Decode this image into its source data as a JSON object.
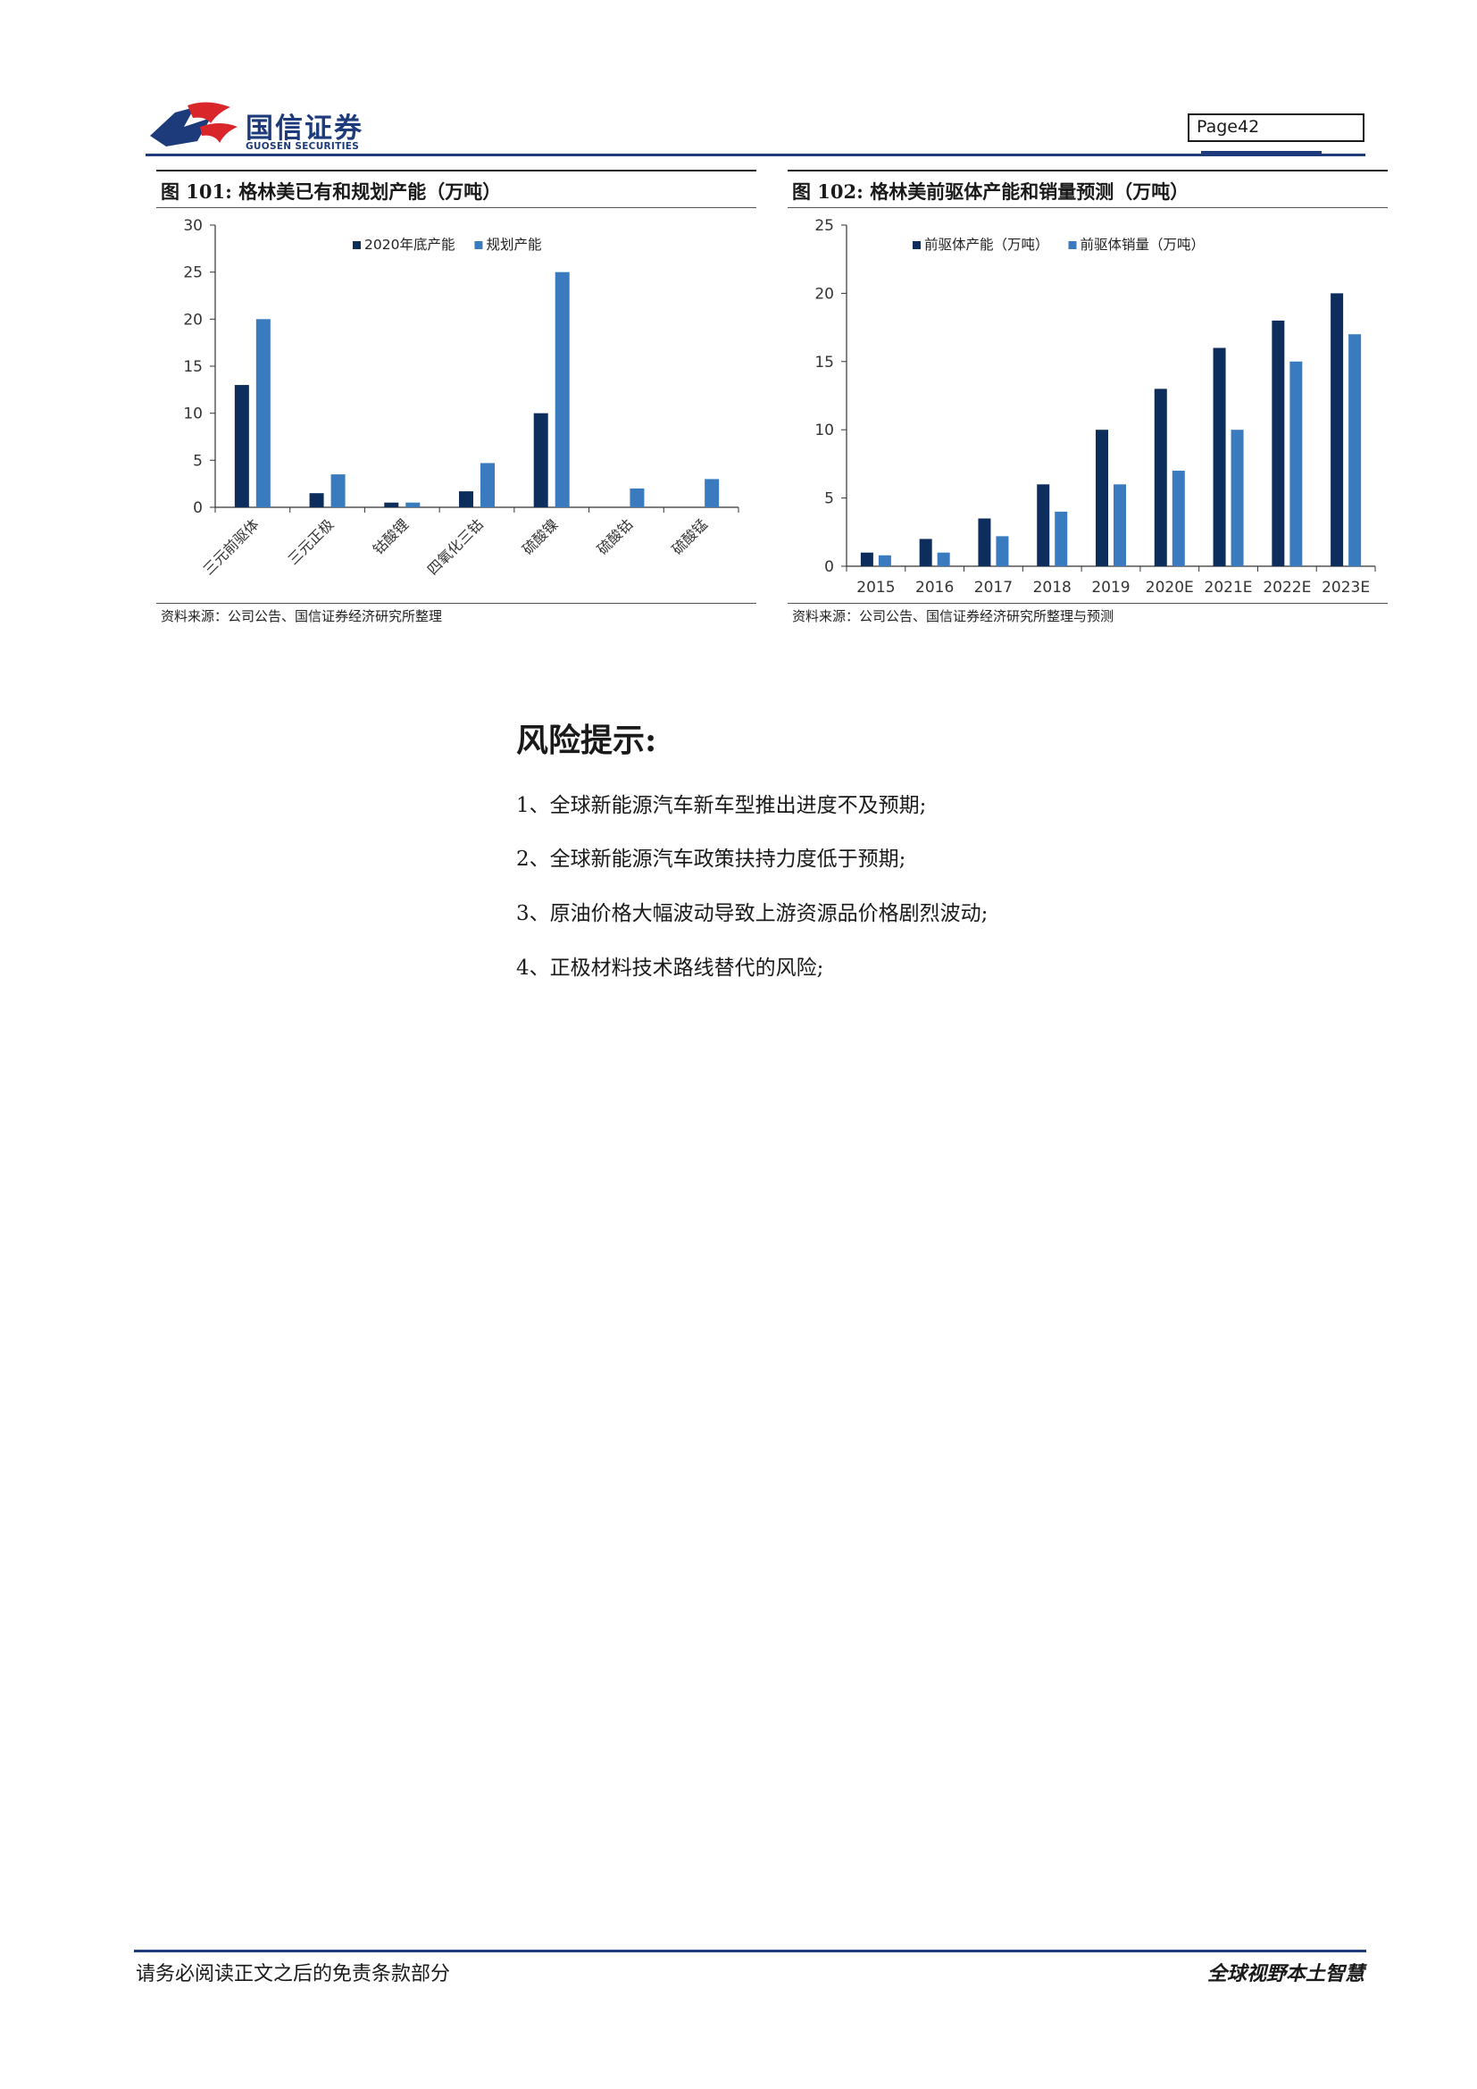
{
  "header": {
    "logo_cn": "国信证券",
    "logo_en": "GUOSEN SECURITIES",
    "page_label": "Page42"
  },
  "colors": {
    "dark_navy": "#0d2e5c",
    "mid_blue": "#3a7bbf",
    "brand_blue": "#1d3a7a",
    "logo_red": "#d9262b"
  },
  "figures": [
    {
      "title": "图 101:  格林美已有和规划产能（万吨）",
      "source": "资料来源：公司公告、国信证券经济研究所整理",
      "chart_data": {
        "type": "bar",
        "categories": [
          "三元前驱体",
          "三元正极",
          "钴酸锂",
          "四氧化三钴",
          "硫酸镍",
          "硫酸钴",
          "硫酸锰"
        ],
        "series": [
          {
            "name": "2020年底产能",
            "values": [
              13,
              1.5,
              0.5,
              1.7,
              10,
              0,
              0
            ]
          },
          {
            "name": "规划产能",
            "values": [
              20,
              3.5,
              0.5,
              4.7,
              25,
              2,
              3
            ]
          }
        ],
        "ylim": [
          0,
          30
        ],
        "yticks": [
          "0",
          "5",
          "10",
          "15",
          "20",
          "25",
          "30"
        ],
        "legend": "top-center"
      }
    },
    {
      "title": "图 102:  格林美前驱体产能和销量预测（万吨）",
      "source": "资料来源：公司公告、国信证券经济研究所整理与预测",
      "chart_data": {
        "type": "bar",
        "categories": [
          "2015",
          "2016",
          "2017",
          "2018",
          "2019",
          "2020E",
          "2021E",
          "2022E",
          "2023E"
        ],
        "series": [
          {
            "name": "前驱体产能（万吨）",
            "values": [
              1,
              2,
              3.5,
              6,
              10,
              13,
              16,
              18,
              20
            ]
          },
          {
            "name": "前驱体销量（万吨）",
            "values": [
              0.8,
              1,
              2.2,
              4,
              6,
              7,
              10,
              15,
              17
            ]
          }
        ],
        "ylim": [
          0,
          25
        ],
        "yticks": [
          "0",
          "5",
          "10",
          "15",
          "20",
          "25"
        ],
        "legend": "top-center"
      }
    }
  ],
  "risk": {
    "title": "风险提示:",
    "items": [
      "1、全球新能源汽车新车型推出进度不及预期;",
      "2、全球新能源汽车政策扶持力度低于预期;",
      "3、原油价格大幅波动导致上游资源品价格剧烈波动;",
      "4、正极材料技术路线替代的风险;"
    ]
  },
  "footer": {
    "left": "请务必阅读正文之后的免责条款部分",
    "right": "全球视野本土智慧"
  }
}
